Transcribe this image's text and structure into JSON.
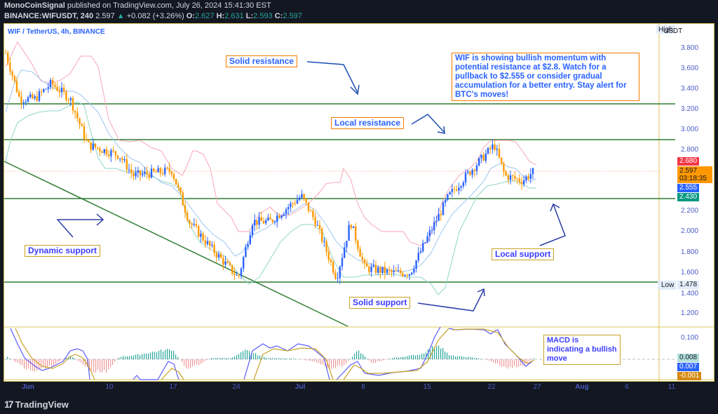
{
  "header": {
    "author": "MonoCoinSignal",
    "published_text": "published on TradingView.com, July 26, 2024 15:41:30 EST",
    "symbol": "BINANCE:WIFUSDT, 240",
    "last": "2.597",
    "change_arrow": "▲",
    "change": "+0.082 (+3.26%)",
    "o_label": "O:",
    "o": "2.627",
    "h_label": "H:",
    "h": "2.631",
    "l_label": "L:",
    "l": "2.593",
    "c_label": "C:",
    "c": "2.597"
  },
  "legend_title": "WIF / TetherUS, 4h, BINANCE",
  "footer": {
    "brand": "TradingView",
    "logo": "17"
  },
  "annotations": {
    "solid_resistance": "Solid resistance",
    "local_resistance": "Local resistance",
    "dynamic_support": "Dynamic support",
    "solid_support": "Solid support",
    "local_support": "Local support",
    "idea": "WIF is showing bullish momentum with potential resistance at $2.8. Watch for a pullback to $2.555 or consider gradual accumulation for a better entry. Stay alert for BTC's moves!",
    "macd": "MACD is indicating a bullish move"
  },
  "price_axis": {
    "currency": "USDT",
    "high_label": "High",
    "low_label": "Low",
    "low_value": "1.478",
    "ticks": [
      "3.800",
      "3.600",
      "3.400",
      "3.200",
      "3.000",
      "2.800",
      "2.200",
      "2.000",
      "1.800",
      "1.600",
      "1.400",
      "1.200"
    ],
    "tags": {
      "upper_band": "2.680",
      "last_price": "2.597",
      "countdown": "03:18:35",
      "basis": "2.555",
      "lower_band": "2.430"
    }
  },
  "macd_axis": {
    "ticks": [
      "0.100"
    ],
    "tags": {
      "histogram": "0.008",
      "macd": "0.007",
      "signal": "-0.001"
    }
  },
  "time_axis": {
    "labels": [
      "Jun",
      "10",
      "17",
      "24",
      "Jul",
      "8",
      "15",
      "22",
      "27",
      "Aug",
      "6",
      "11"
    ]
  },
  "colors": {
    "up_candle": "#2962ff",
    "down_candle": "#ff9800",
    "level_line": "#2e7d32",
    "upper_band": "#f48fb1",
    "basis": "#90caf9",
    "lower_band": "#80cbc4",
    "macd_line": "#5c5cff",
    "signal_line": "#c9a227"
  },
  "chart_data": {
    "type": "candlestick",
    "title": "WIF / TetherUS, 4h, BINANCE",
    "xlabel": "",
    "ylabel": "USDT",
    "ylim": [
      1.1,
      3.95
    ],
    "x_ticks": [
      "Jun",
      "10",
      "17",
      "24",
      "Jul",
      "8",
      "15",
      "22",
      "27",
      "Aug",
      "6",
      "11"
    ],
    "y_ticks": [
      3.8,
      3.6,
      3.4,
      3.2,
      3.0,
      2.8,
      2.6,
      2.4,
      2.2,
      2.0,
      1.8,
      1.6,
      1.4,
      1.2
    ],
    "horizontal_levels": [
      {
        "name": "Solid resistance",
        "value": 3.25
      },
      {
        "name": "Local resistance",
        "value": 2.9
      },
      {
        "name": "Local support",
        "value": 2.43
      },
      {
        "name": "Solid support",
        "value": 1.5
      }
    ],
    "trendline": {
      "name": "Dynamic support",
      "from": {
        "date": "May 31",
        "price": 2.65
      },
      "to": {
        "date": "Jul 4",
        "price": 1.08
      }
    },
    "approx_close_path": [
      {
        "date": "May 31",
        "close": 3.75
      },
      {
        "date": "Jun 2",
        "close": 3.3
      },
      {
        "date": "Jun 4",
        "close": 3.3
      },
      {
        "date": "Jun 6",
        "close": 3.45
      },
      {
        "date": "Jun 8",
        "close": 3.3
      },
      {
        "date": "Jun 9",
        "close": 2.85
      },
      {
        "date": "Jun 12",
        "close": 2.75
      },
      {
        "date": "Jun 14",
        "close": 2.55
      },
      {
        "date": "Jun 17",
        "close": 2.6
      },
      {
        "date": "Jun 19",
        "close": 2.1
      },
      {
        "date": "Jun 21",
        "close": 1.85
      },
      {
        "date": "Jun 24",
        "close": 1.55
      },
      {
        "date": "Jun 26",
        "close": 2.1
      },
      {
        "date": "Jun 28",
        "close": 2.1
      },
      {
        "date": "Jul 1",
        "close": 2.35
      },
      {
        "date": "Jul 3",
        "close": 2.1
      },
      {
        "date": "Jul 5",
        "close": 1.55
      },
      {
        "date": "Jul 6",
        "close": 2.1
      },
      {
        "date": "Jul 8",
        "close": 1.65
      },
      {
        "date": "Jul 11",
        "close": 1.6
      },
      {
        "date": "Jul 13",
        "close": 1.6
      },
      {
        "date": "Jul 15",
        "close": 1.95
      },
      {
        "date": "Jul 17",
        "close": 2.35
      },
      {
        "date": "Jul 19",
        "close": 2.55
      },
      {
        "date": "Jul 22",
        "close": 2.85
      },
      {
        "date": "Jul 24",
        "close": 2.55
      },
      {
        "date": "Jul 25",
        "close": 2.5
      },
      {
        "date": "Jul 26",
        "close": 2.597
      }
    ],
    "last": {
      "open": 2.627,
      "high": 2.631,
      "low": 2.593,
      "close": 2.597,
      "change": 0.082,
      "change_pct": 3.26
    },
    "bollinger_last": {
      "upper": 2.68,
      "basis": 2.555,
      "lower": 2.43
    },
    "low_marker": 1.478,
    "macd": {
      "macd": 0.007,
      "signal": -0.001,
      "histogram": 0.008,
      "y_tick": 0.1
    }
  }
}
